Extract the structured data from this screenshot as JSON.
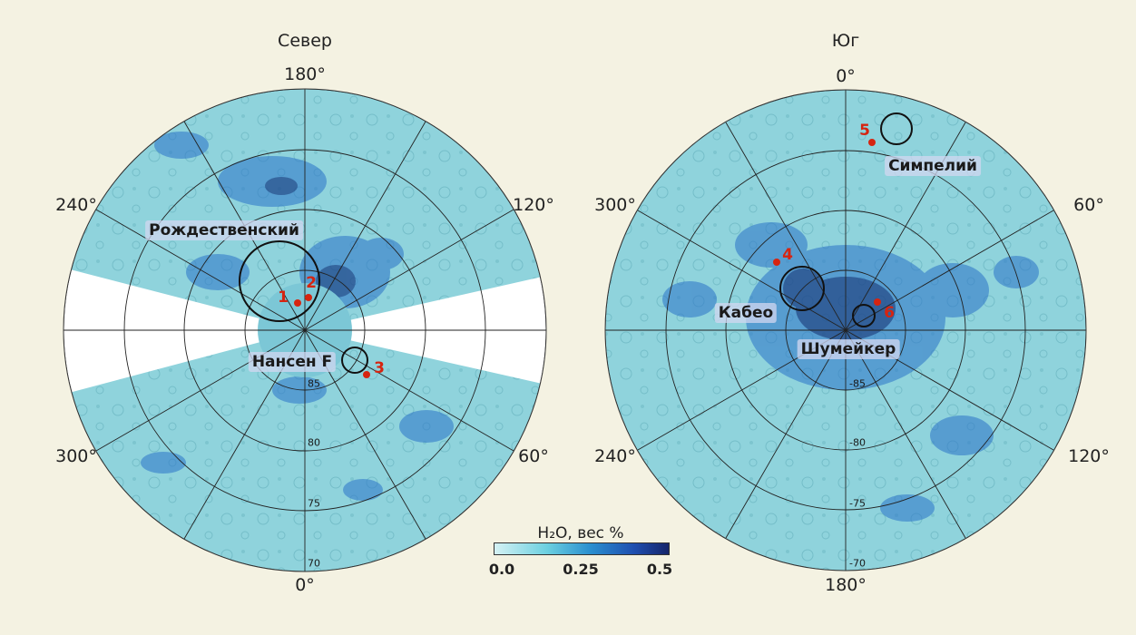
{
  "maps": {
    "north": {
      "title": "Север",
      "lon_labels": [
        "180°",
        "120°",
        "60°",
        "0°",
        "300°",
        "240°"
      ],
      "lat_labels": [
        "85",
        "80",
        "75",
        "70"
      ],
      "craters": [
        "Рождественский",
        "Нансен F"
      ],
      "sites": [
        "1",
        "2",
        "3"
      ]
    },
    "south": {
      "title": "Юг",
      "lon_labels": [
        "0°",
        "60°",
        "120°",
        "180°",
        "240°",
        "300°"
      ],
      "lat_labels": [
        "-85",
        "-80",
        "-75",
        "-70"
      ],
      "craters": [
        "Симпелий",
        "Кабео",
        "Шумейкер"
      ],
      "sites": [
        "4",
        "5",
        "6"
      ]
    }
  },
  "legend": {
    "title": "H₂O, вес %",
    "ticks": [
      "0.0",
      "0.25",
      "0.5"
    ],
    "min": 0.0,
    "max": 0.5,
    "colors": [
      "#d5f2f4",
      "#6cd0e0",
      "#2a8fcf",
      "#1f4fb0",
      "#15256a"
    ]
  },
  "colors": {
    "background": "#f4f2e2",
    "map_base": "#8fd3dc",
    "site_marker": "#d62410"
  }
}
